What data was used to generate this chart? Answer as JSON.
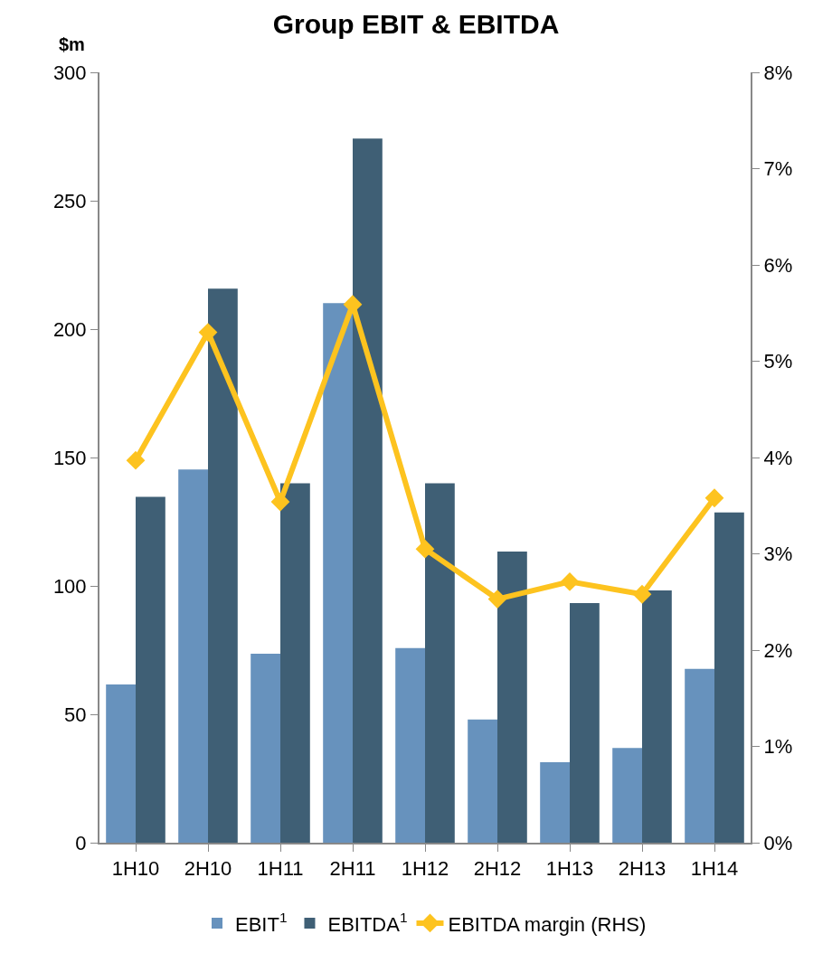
{
  "chart_data": {
    "type": "bar",
    "title": "Group EBIT & EBITDA",
    "ylabel": "$m",
    "categories": [
      "1H10",
      "2H10",
      "1H11",
      "2H11",
      "1H12",
      "2H12",
      "1H13",
      "2H13",
      "1H14"
    ],
    "series": [
      {
        "name": "EBIT$^{1}$",
        "color": "#6792bd",
        "values": [
          61.6,
          145.3,
          73.6,
          210.1,
          75.8,
          48.0,
          31.3,
          36.9,
          67.7
        ]
      },
      {
        "name": "EBITDA$^{1}$",
        "color": "#3f5f75",
        "values": [
          134.7,
          215.8,
          140.0,
          274.2,
          140.0,
          113.4,
          93.3,
          98.2,
          128.6
        ]
      },
      {
        "name": "EBITDA margin (RHS)",
        "type": "line",
        "axis": "y2",
        "color": "#fdc31f",
        "marker": "diamond",
        "values": [
          3.97,
          5.3,
          3.54,
          5.59,
          3.05,
          2.53,
          2.71,
          2.58,
          3.58
        ]
      }
    ],
    "ylim": [
      0,
      300
    ],
    "yticks": [
      0,
      50,
      100,
      150,
      200,
      250,
      300
    ],
    "y2lim": [
      0,
      8
    ],
    "y2ticks": [
      {
        "value": 0,
        "label": "0%"
      },
      {
        "value": 1,
        "label": "1%"
      },
      {
        "value": 2,
        "label": "2%"
      },
      {
        "value": 3,
        "label": "3%"
      },
      {
        "value": 4,
        "label": "4%"
      },
      {
        "value": 5,
        "label": "5%"
      },
      {
        "value": 6,
        "label": "6%"
      },
      {
        "value": 7,
        "label": "7%"
      },
      {
        "value": 8,
        "label": "8%"
      }
    ],
    "legend": "bottom"
  }
}
